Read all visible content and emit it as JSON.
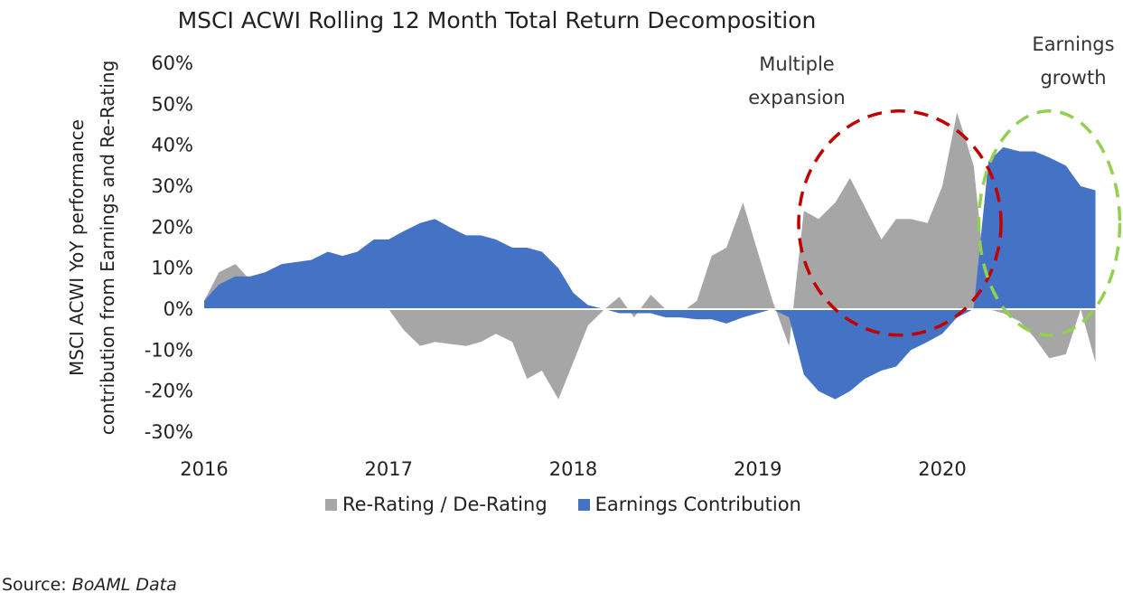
{
  "chart_data": {
    "type": "area",
    "title": "MSCI ACWI Rolling 12 Month Total Return Decomposition",
    "ylabel": [
      "MSCI ACWI YoY performance",
      "contribution from Earnings and Re-Rating"
    ],
    "xlabel": "",
    "ylim": [
      -0.3,
      0.6
    ],
    "xlim": [
      2016,
      2020.95
    ],
    "y_ticks": [
      "-30%",
      "-20%",
      "-10%",
      "0%",
      "10%",
      "20%",
      "30%",
      "40%",
      "50%",
      "60%"
    ],
    "x_ticks": [
      "2016",
      "2017",
      "2018",
      "2019",
      "2020"
    ],
    "legend_position": "bottom",
    "grid": false,
    "series": [
      {
        "name": "Re-Rating / De-Rating",
        "color": "#a6a6a6",
        "points": [
          [
            2016.0,
            0.02
          ],
          [
            2016.08,
            0.09
          ],
          [
            2016.17,
            0.11
          ],
          [
            2016.25,
            0.07
          ],
          [
            2016.33,
            0.05
          ],
          [
            2016.42,
            0.02
          ],
          [
            2016.5,
            0.02
          ],
          [
            2016.58,
            0.02
          ],
          [
            2016.67,
            0.01
          ],
          [
            2016.75,
            0.01
          ],
          [
            2016.83,
            0.01
          ],
          [
            2016.92,
            0.01
          ],
          [
            2017.0,
            0.0
          ],
          [
            2017.08,
            -0.05
          ],
          [
            2017.17,
            -0.09
          ],
          [
            2017.25,
            -0.08
          ],
          [
            2017.33,
            -0.085
          ],
          [
            2017.42,
            -0.09
          ],
          [
            2017.5,
            -0.08
          ],
          [
            2017.58,
            -0.06
          ],
          [
            2017.67,
            -0.08
          ],
          [
            2017.75,
            -0.17
          ],
          [
            2017.83,
            -0.15
          ],
          [
            2017.92,
            -0.22
          ],
          [
            2018.0,
            -0.13
          ],
          [
            2018.08,
            -0.04
          ],
          [
            2018.17,
            0.0
          ],
          [
            2018.25,
            0.03
          ],
          [
            2018.33,
            -0.02
          ],
          [
            2018.42,
            0.035
          ],
          [
            2018.5,
            0.0
          ],
          [
            2018.58,
            -0.01
          ],
          [
            2018.67,
            0.02
          ],
          [
            2018.75,
            0.13
          ],
          [
            2018.83,
            0.15
          ],
          [
            2018.92,
            0.26
          ],
          [
            2019.0,
            0.14
          ],
          [
            2019.08,
            0.02
          ],
          [
            2019.17,
            -0.09
          ],
          [
            2019.25,
            0.24
          ],
          [
            2019.33,
            0.22
          ],
          [
            2019.42,
            0.26
          ],
          [
            2019.5,
            0.32
          ],
          [
            2019.58,
            0.25
          ],
          [
            2019.67,
            0.17
          ],
          [
            2019.75,
            0.22
          ],
          [
            2019.83,
            0.22
          ],
          [
            2019.92,
            0.21
          ],
          [
            2020.0,
            0.3
          ],
          [
            2020.08,
            0.48
          ],
          [
            2020.17,
            0.35
          ],
          [
            2020.25,
            0.0
          ],
          [
            2020.33,
            -0.01
          ],
          [
            2020.42,
            -0.03
          ],
          [
            2020.5,
            -0.07
          ],
          [
            2020.58,
            -0.12
          ],
          [
            2020.67,
            -0.11
          ],
          [
            2020.75,
            0.0
          ],
          [
            2020.83,
            -0.13
          ]
        ]
      },
      {
        "name": "Earnings Contribution",
        "color": "#4472c4",
        "points": [
          [
            2016.0,
            0.02
          ],
          [
            2016.08,
            0.06
          ],
          [
            2016.17,
            0.08
          ],
          [
            2016.25,
            0.08
          ],
          [
            2016.33,
            0.09
          ],
          [
            2016.42,
            0.11
          ],
          [
            2016.5,
            0.115
          ],
          [
            2016.58,
            0.12
          ],
          [
            2016.67,
            0.14
          ],
          [
            2016.75,
            0.13
          ],
          [
            2016.83,
            0.14
          ],
          [
            2016.92,
            0.17
          ],
          [
            2017.0,
            0.17
          ],
          [
            2017.08,
            0.19
          ],
          [
            2017.17,
            0.21
          ],
          [
            2017.25,
            0.22
          ],
          [
            2017.33,
            0.2
          ],
          [
            2017.42,
            0.18
          ],
          [
            2017.5,
            0.18
          ],
          [
            2017.58,
            0.17
          ],
          [
            2017.67,
            0.15
          ],
          [
            2017.75,
            0.15
          ],
          [
            2017.83,
            0.14
          ],
          [
            2017.92,
            0.1
          ],
          [
            2018.0,
            0.04
          ],
          [
            2018.08,
            0.01
          ],
          [
            2018.17,
            0.0
          ],
          [
            2018.25,
            -0.01
          ],
          [
            2018.33,
            -0.01
          ],
          [
            2018.42,
            -0.01
          ],
          [
            2018.5,
            -0.02
          ],
          [
            2018.58,
            -0.02
          ],
          [
            2018.67,
            -0.025
          ],
          [
            2018.75,
            -0.025
          ],
          [
            2018.83,
            -0.035
          ],
          [
            2018.92,
            -0.02
          ],
          [
            2019.0,
            -0.01
          ],
          [
            2019.08,
            0.0
          ],
          [
            2019.17,
            -0.02
          ],
          [
            2019.25,
            -0.16
          ],
          [
            2019.33,
            -0.2
          ],
          [
            2019.42,
            -0.22
          ],
          [
            2019.5,
            -0.2
          ],
          [
            2019.58,
            -0.17
          ],
          [
            2019.67,
            -0.15
          ],
          [
            2019.75,
            -0.14
          ],
          [
            2019.83,
            -0.1
          ],
          [
            2019.92,
            -0.08
          ],
          [
            2020.0,
            -0.06
          ],
          [
            2020.08,
            -0.02
          ],
          [
            2020.17,
            0.0
          ],
          [
            2020.25,
            0.36
          ],
          [
            2020.33,
            0.395
          ],
          [
            2020.42,
            0.385
          ],
          [
            2020.5,
            0.385
          ],
          [
            2020.58,
            0.37
          ],
          [
            2020.67,
            0.35
          ],
          [
            2020.75,
            0.3
          ],
          [
            2020.83,
            0.29
          ]
        ]
      }
    ],
    "annotations": [
      {
        "lines": [
          "Multiple",
          "expansion"
        ],
        "circle_color": "#c00000"
      },
      {
        "lines": [
          "Earnings",
          "growth"
        ],
        "circle_color": "#92d050"
      }
    ]
  },
  "source": {
    "label": "Source:",
    "name": "BoAML Data"
  }
}
